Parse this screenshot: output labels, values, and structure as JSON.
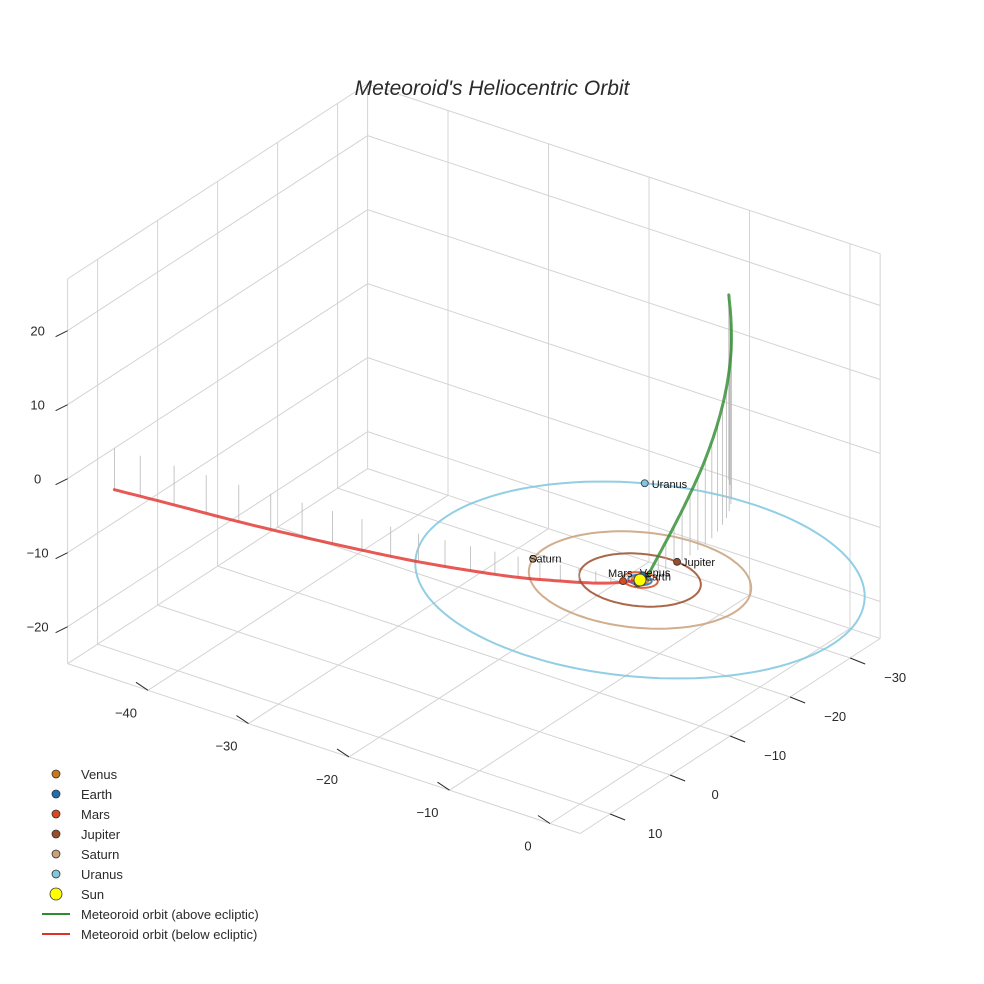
{
  "chart_data": {
    "type": "scatter3d",
    "title": "Meteoroid's Heliocentric Orbit",
    "axes": {
      "x": {
        "ticks": [
          -40,
          -30,
          -20,
          -10,
          0
        ],
        "tick_labels": [
          "−40",
          "−30",
          "−20",
          "−10",
          "0"
        ]
      },
      "y": {
        "ticks": [
          -30,
          -20,
          -10,
          0,
          10
        ],
        "tick_labels": [
          "−30",
          "−20",
          "−10",
          "0",
          "10"
        ]
      },
      "z": {
        "ticks": [
          -20,
          -10,
          0,
          10,
          20
        ],
        "tick_labels": [
          "−20",
          "−10",
          "0",
          "10",
          "20"
        ]
      }
    },
    "planets": [
      {
        "name": "Venus",
        "color": "#c8781a",
        "orbit_radius": 0.72,
        "position": [
          0.2,
          0.7,
          0
        ]
      },
      {
        "name": "Earth",
        "color": "#1f6fb5",
        "orbit_radius": 1.0,
        "position": [
          -0.3,
          -0.95,
          0
        ]
      },
      {
        "name": "Mars",
        "color": "#d9481e",
        "orbit_radius": 1.52,
        "position": [
          -1.0,
          1.15,
          0
        ]
      },
      {
        "name": "Jupiter",
        "color": "#9a4d2a",
        "orbit_radius": 5.2,
        "position": [
          0.6,
          -5.17,
          0
        ]
      },
      {
        "name": "Saturn",
        "color": "#c9a07a",
        "orbit_radius": 9.5,
        "position": [
          -9.2,
          2.4,
          0
        ]
      },
      {
        "name": "Uranus",
        "color": "#7fc6df",
        "orbit_radius": 19.2,
        "position": [
          -9.5,
          -16.7,
          0
        ]
      }
    ],
    "sun": {
      "name": "Sun",
      "color": "#ffff00",
      "position": [
        0,
        0,
        0
      ]
    },
    "meteoroid_above": {
      "name": "Meteoroid orbit (above ecliptic)",
      "color": "#2e8b2e",
      "x": [
        0.2,
        0.5,
        0.7,
        0.8,
        0.7,
        0.2,
        -0.6,
        -1.7,
        -3.0,
        -4.3
      ],
      "y": [
        -0.8,
        -2.2,
        -4.5,
        -7.0,
        -9.7,
        -12.6,
        -15.4,
        -18.0,
        -20.2,
        -22.0
      ],
      "z": [
        0.0,
        2.3,
        5.2,
        8.3,
        11.5,
        14.6,
        17.6,
        20.4,
        22.9,
        25.0
      ]
    },
    "meteoroid_below": {
      "name": "Meteoroid orbit (below ecliptic)",
      "color": "#e0302a",
      "x": [
        0.2,
        -1.5,
        -3.8,
        -6.8,
        -10.4,
        -14.6,
        -19.3,
        -24.5,
        -30.1,
        -36.1,
        -42.3,
        -48.0
      ],
      "y": [
        -0.8,
        0.1,
        1.0,
        1.9,
        2.9,
        3.8,
        4.6,
        5.3,
        5.9,
        6.4,
        6.8,
        7.2
      ],
      "z": [
        0.0,
        -0.9,
        -1.6,
        -2.2,
        -2.8,
        -3.3,
        -3.8,
        -4.2,
        -4.6,
        -5.0,
        -5.3,
        -5.6
      ]
    }
  },
  "legend": [
    {
      "label": "Venus",
      "kind": "dot",
      "color": "#c8781a"
    },
    {
      "label": "Earth",
      "kind": "dot",
      "color": "#1f6fb5"
    },
    {
      "label": "Mars",
      "kind": "dot",
      "color": "#d9481e"
    },
    {
      "label": "Jupiter",
      "kind": "dot",
      "color": "#9a4d2a"
    },
    {
      "label": "Saturn",
      "kind": "dot",
      "color": "#c9a07a"
    },
    {
      "label": "Uranus",
      "kind": "dot",
      "color": "#7fc6df"
    },
    {
      "label": "Sun",
      "kind": "sun",
      "color": "#ffff00"
    },
    {
      "label": "Meteoroid orbit (above ecliptic)",
      "kind": "line",
      "color": "#2e8b2e"
    },
    {
      "label": "Meteoroid orbit (below ecliptic)",
      "kind": "line",
      "color": "#e0302a"
    }
  ]
}
